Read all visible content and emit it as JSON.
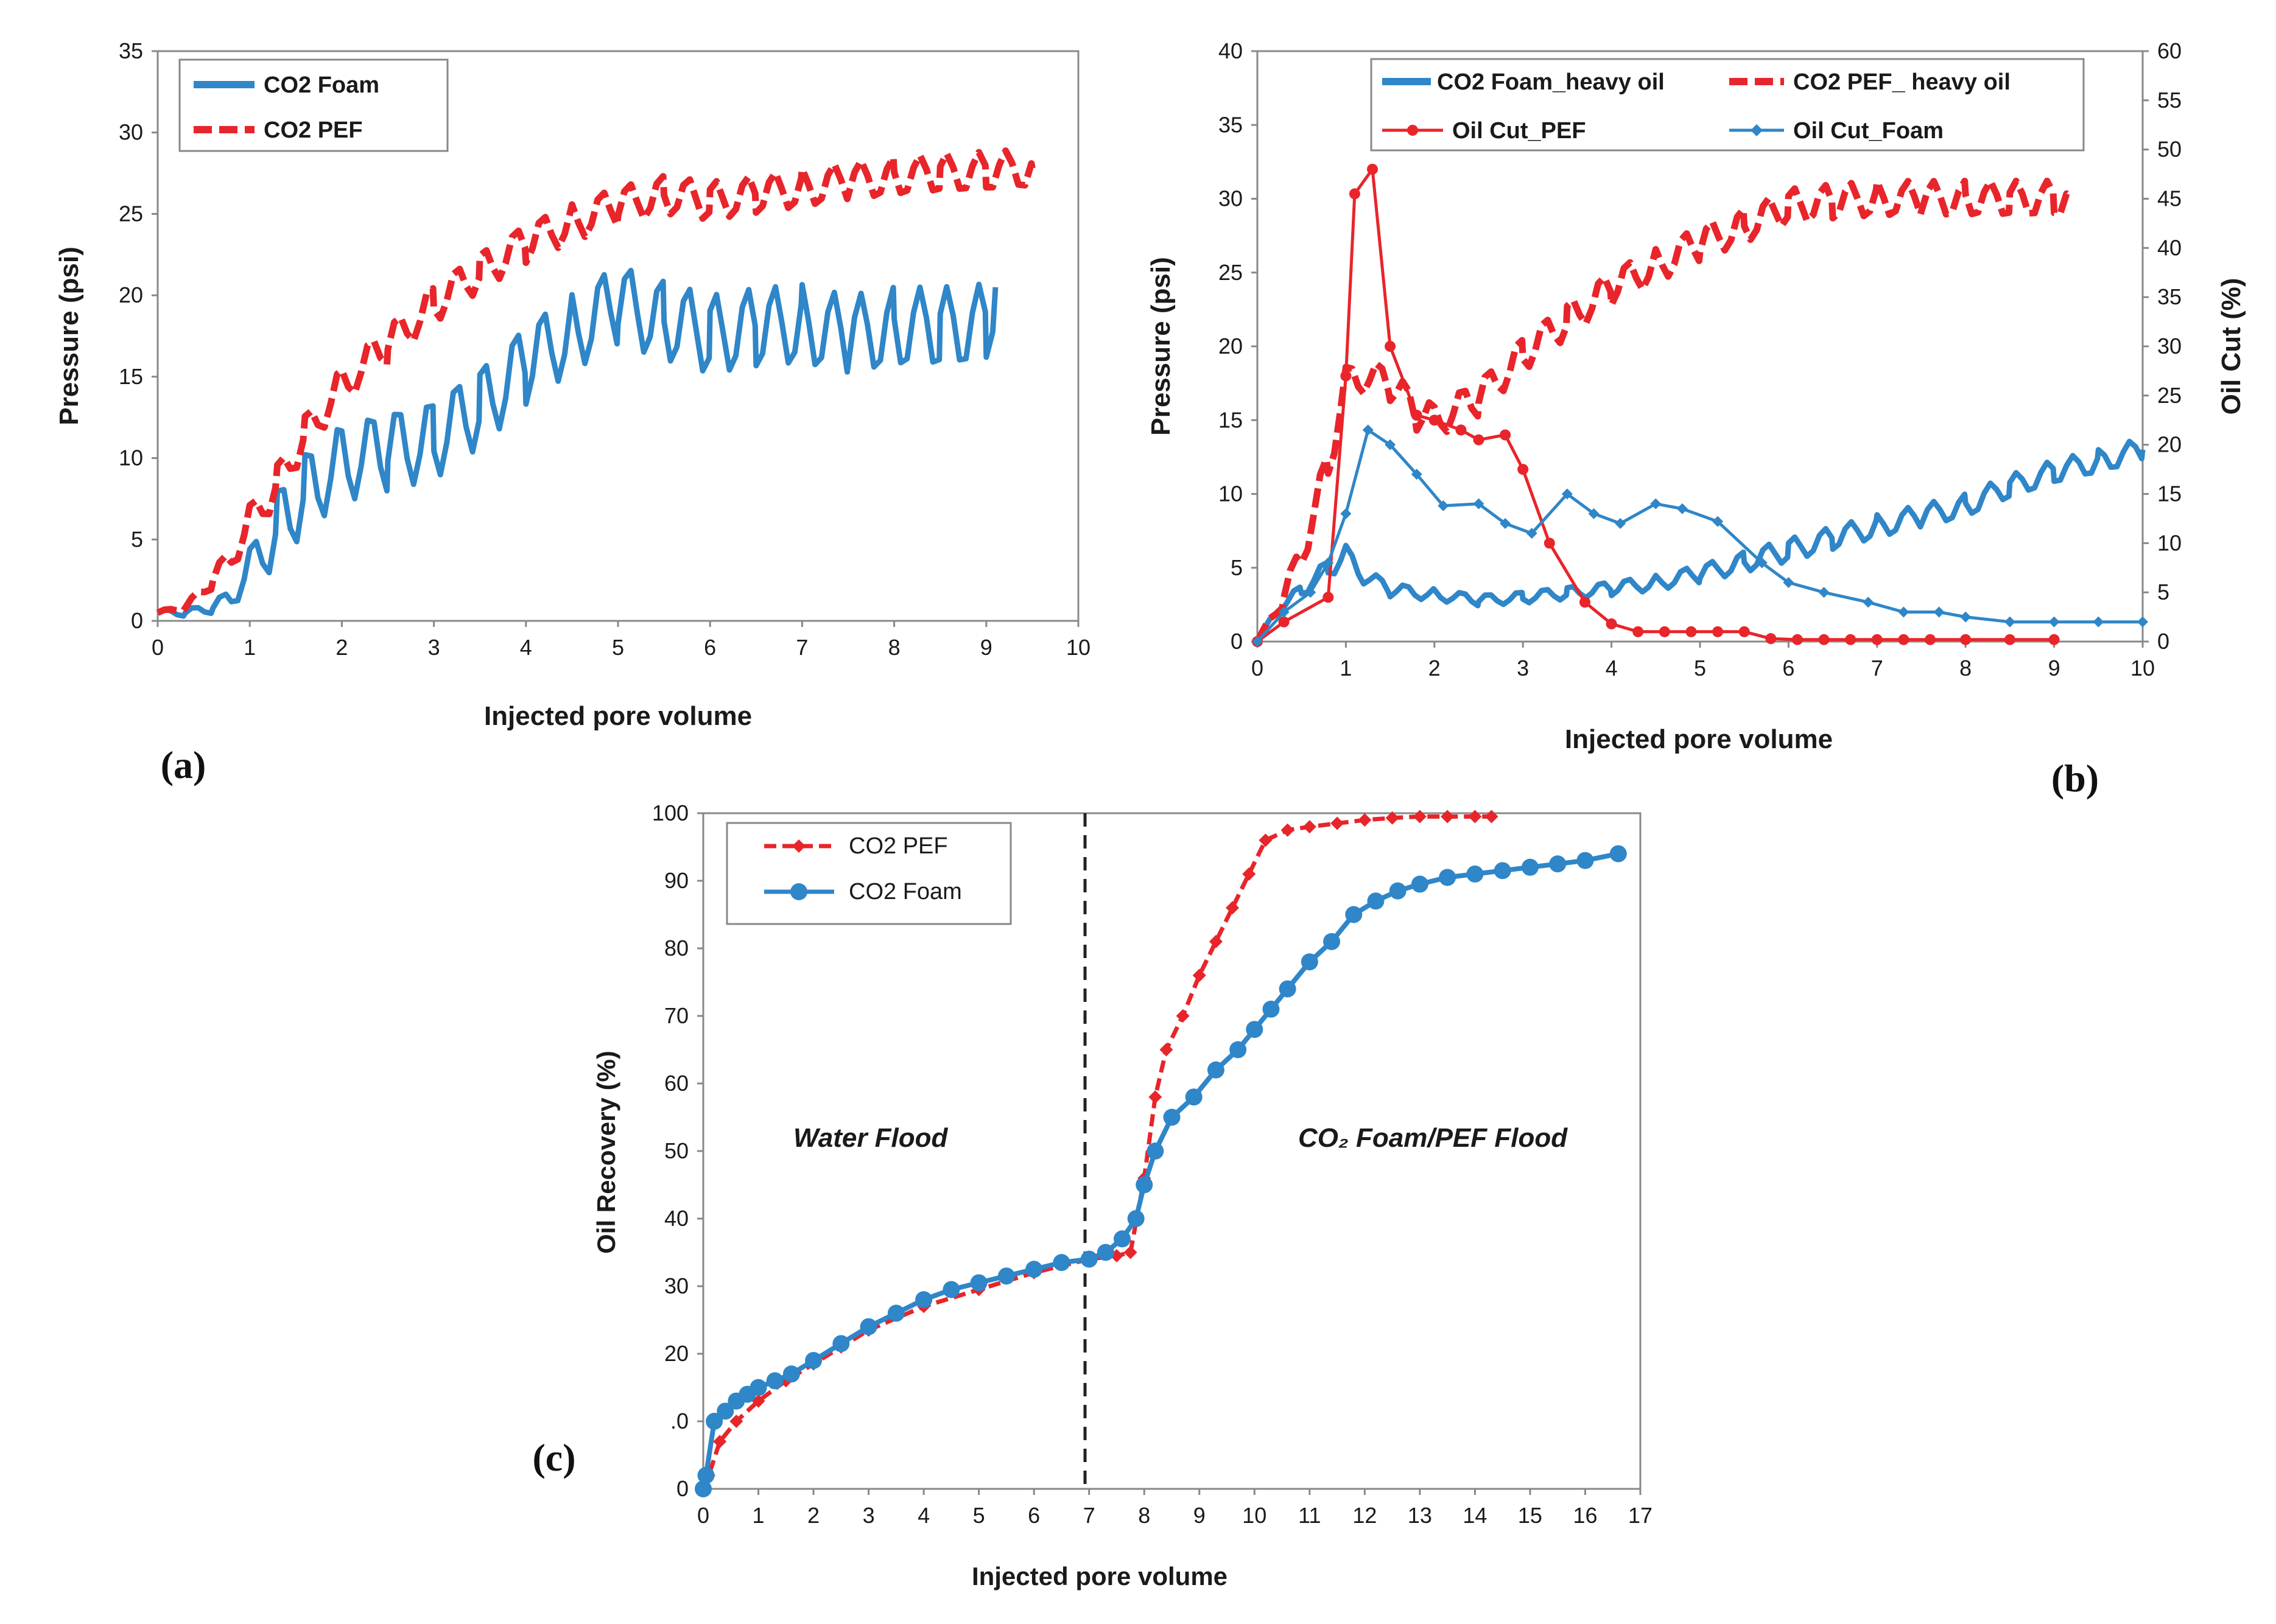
{
  "chart_data": [
    {
      "id": "a",
      "type": "line",
      "panel_label": "(a)",
      "xlabel": "Injected pore volume",
      "ylabel": "Pressure (psi)",
      "xlim": [
        0,
        10
      ],
      "ylim": [
        0,
        35
      ],
      "xticks": [
        "0",
        "1",
        "2",
        "3",
        "4",
        "5",
        "6",
        "7",
        "8",
        "9",
        "10"
      ],
      "yticks": [
        "0",
        "5",
        "10",
        "15",
        "20",
        "25",
        "30",
        "35"
      ],
      "legend": [
        "CO2 Foam",
        "CO2 PEF"
      ],
      "series": [
        {
          "name": "CO2 Foam",
          "color": "#2f86c8",
          "style": "solid",
          "x": [
            0,
            0.3,
            0.6,
            0.8,
            1,
            1.3,
            1.6,
            2,
            2.5,
            3,
            3.5,
            4,
            4.5,
            5,
            5.5,
            6,
            6.5,
            7,
            7.5,
            8,
            8.5,
            9,
            9.1
          ],
          "y": [
            0.5,
            0.5,
            0.8,
            1.5,
            3.2,
            5.8,
            8,
            9.8,
            10.5,
            11.2,
            13.2,
            15.8,
            17.8,
            19.5,
            18.5,
            17.6,
            18,
            18.2,
            17.5,
            18,
            18,
            18.2,
            20.5
          ],
          "oscillation": 2.5
        },
        {
          "name": "CO2 PEF",
          "color": "#e8252a",
          "style": "dashed",
          "x": [
            0,
            0.3,
            0.6,
            0.8,
            1,
            1.3,
            1.6,
            2,
            2.5,
            3,
            3.5,
            4,
            4.5,
            5,
            5.5,
            6,
            6.5,
            7,
            7.5,
            8,
            8.5,
            9,
            9.5
          ],
          "y": [
            0.5,
            0.8,
            2.5,
            4,
            6,
            8.5,
            11.5,
            14.5,
            17,
            19.5,
            21.5,
            23.2,
            24.5,
            25.5,
            26.2,
            25.8,
            26.2,
            26.6,
            27,
            27.3,
            27.5,
            27.6,
            27.8
          ],
          "oscillation": 1.2
        }
      ]
    },
    {
      "id": "b",
      "type": "line",
      "panel_label": "(b)",
      "xlabel": "Injected pore volume",
      "ylabel": "Pressure (psi)",
      "ylabel_right": "Oil Cut (%)",
      "xlim": [
        0,
        10
      ],
      "ylim": [
        0,
        40
      ],
      "ylim_right": [
        0,
        60
      ],
      "xticks": [
        "0",
        "1",
        "2",
        "3",
        "4",
        "5",
        "6",
        "7",
        "8",
        "9",
        "10"
      ],
      "yticks": [
        "0",
        "5",
        "10",
        "15",
        "20",
        "25",
        "30",
        "35",
        "40"
      ],
      "yticks_right": [
        "0",
        "5",
        "10",
        "15",
        "20",
        "25",
        "30",
        "35",
        "40",
        "45",
        "50",
        "55",
        "60"
      ],
      "legend": [
        "CO2 Foam_heavy oil",
        "CO2 PEF_ heavy oil",
        "Oil Cut_PEF",
        "Oil Cut_Foam"
      ],
      "series": [
        {
          "name": "CO2 Foam_heavy oil",
          "color": "#2f86c8",
          "style": "solid",
          "axis": "left",
          "x": [
            0,
            0.2,
            0.5,
            0.8,
            1,
            1.2,
            1.5,
            2,
            2.5,
            3,
            3.5,
            4,
            4.5,
            5,
            5.5,
            6,
            6.5,
            7,
            7.5,
            8,
            8.5,
            9,
            9.5,
            10
          ],
          "y": [
            0,
            2,
            3.5,
            5,
            5.8,
            4.5,
            3.5,
            3.2,
            2.8,
            3,
            3.3,
            3.6,
            4,
            4.6,
            5.4,
            6.2,
            7,
            7.8,
            8.5,
            9.2,
            10.5,
            11.5,
            12.2,
            13
          ],
          "oscillation": 0.8
        },
        {
          "name": "CO2 PEF_ heavy oil",
          "color": "#e8252a",
          "style": "dashed",
          "axis": "left",
          "x": [
            0,
            0.3,
            0.5,
            0.8,
            1,
            1.2,
            1.5,
            1.8,
            2,
            2.5,
            3,
            3.5,
            4,
            4.5,
            5,
            5.5,
            6,
            6.5,
            7,
            7.5,
            8,
            8.5,
            9,
            9.2
          ],
          "y": [
            0,
            3,
            6,
            12,
            17.5,
            18,
            17.5,
            15.5,
            15,
            16.5,
            19.5,
            21.8,
            24,
            25.5,
            27,
            28.2,
            29.5,
            29.8,
            30,
            30,
            30,
            30,
            30,
            30
          ],
          "oscillation": 1.2
        },
        {
          "name": "Oil Cut_PEF",
          "color": "#e8252a",
          "style": "marker",
          "axis": "right",
          "x": [
            0,
            0.3,
            0.8,
            1,
            1.1,
            1.3,
            1.5,
            1.8,
            2,
            2.3,
            2.5,
            2.8,
            3,
            3.3,
            3.7,
            4,
            4.3,
            4.6,
            4.9,
            5.2,
            5.5,
            5.8,
            6.1,
            6.4,
            6.7,
            7,
            7.3,
            7.6,
            8,
            8.5,
            9
          ],
          "y": [
            0,
            2,
            4.5,
            27,
            45.5,
            48,
            30,
            23,
            22.5,
            21.5,
            20.5,
            21,
            17.5,
            10,
            4,
            1.8,
            1,
            1,
            1,
            1,
            1,
            0.3,
            0.2,
            0.2,
            0.2,
            0.2,
            0.2,
            0.2,
            0.2,
            0.2,
            0.2
          ]
        },
        {
          "name": "Oil Cut_Foam",
          "color": "#2f86c8",
          "style": "marker",
          "axis": "right",
          "x": [
            0,
            0.3,
            0.6,
            0.8,
            1,
            1.25,
            1.5,
            1.8,
            2.1,
            2.5,
            2.8,
            3.1,
            3.5,
            3.8,
            4.1,
            4.5,
            4.8,
            5.2,
            5.7,
            6,
            6.4,
            6.9,
            7.3,
            7.7,
            8,
            8.5,
            9,
            9.5,
            10
          ],
          "y": [
            0,
            3,
            5,
            8,
            13,
            21.5,
            20,
            17,
            13.8,
            14,
            12,
            11,
            15,
            13,
            12,
            14,
            13.5,
            12.2,
            8,
            6,
            5,
            4,
            3,
            3,
            2.5,
            2,
            2,
            2,
            2
          ]
        }
      ]
    },
    {
      "id": "c",
      "type": "line",
      "panel_label": "(c)",
      "xlabel": "Injected pore volume",
      "ylabel": "Oil Recovery (%)",
      "xlim": [
        0,
        17
      ],
      "ylim": [
        0,
        100
      ],
      "xticks": [
        "0",
        "1",
        "2",
        "3",
        "4",
        "5",
        "6",
        "7",
        "8",
        "9",
        "10",
        "11",
        "12",
        "13",
        "14",
        "15",
        "16",
        "17"
      ],
      "yticks": [
        "0",
        ".0",
        "20",
        "30",
        "40",
        "50",
        "60",
        "70",
        "80",
        "90",
        "100"
      ],
      "legend": [
        "CO2 PEF",
        "CO2 Foam"
      ],
      "annotations": [
        "Water Flood",
        "CO₂ Foam/PEF Flood"
      ],
      "vline_x": 7,
      "series": [
        {
          "name": "CO2 PEF",
          "color": "#e8252a",
          "style": "dashed-marker",
          "x": [
            0,
            0.1,
            0.3,
            0.6,
            1,
            1.5,
            2,
            2.5,
            3,
            4,
            5,
            6,
            7,
            7.5,
            7.75,
            8,
            8.2,
            8.4,
            8.7,
            9,
            9.3,
            9.6,
            9.9,
            10.2,
            10.6,
            11,
            11.5,
            12,
            12.5,
            13,
            13.5,
            14,
            14.3
          ],
          "y": [
            0,
            2,
            7,
            10,
            13,
            16,
            18.5,
            21,
            23.5,
            27,
            29.5,
            32,
            34,
            34.5,
            35,
            46,
            58,
            65,
            70,
            76,
            81,
            86,
            91,
            96,
            97.5,
            98,
            98.5,
            99,
            99.3,
            99.5,
            99.5,
            99.5,
            99.5
          ]
        },
        {
          "name": "CO2 Foam",
          "color": "#2f86c8",
          "style": "solid-marker",
          "x": [
            0,
            0.05,
            0.2,
            0.4,
            0.6,
            0.8,
            1,
            1.3,
            1.6,
            2,
            2.5,
            3,
            3.5,
            4,
            4.5,
            5,
            5.5,
            6,
            6.5,
            7,
            7.3,
            7.6,
            7.85,
            8,
            8.2,
            8.5,
            8.9,
            9.3,
            9.7,
            10,
            10.3,
            10.6,
            11,
            11.4,
            11.8,
            12.2,
            12.6,
            13,
            13.5,
            14,
            14.5,
            15,
            15.5,
            16,
            16.6
          ],
          "y": [
            0,
            2,
            10,
            11.5,
            13,
            14,
            15,
            16,
            17,
            19,
            21.5,
            24,
            26,
            28,
            29.5,
            30.5,
            31.5,
            32.5,
            33.5,
            34,
            35,
            37,
            40,
            45,
            50,
            55,
            58,
            62,
            65,
            68,
            71,
            74,
            78,
            81,
            85,
            87,
            88.5,
            89.5,
            90.5,
            91,
            91.5,
            92,
            92.5,
            93,
            94
          ]
        }
      ]
    }
  ]
}
